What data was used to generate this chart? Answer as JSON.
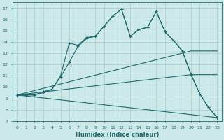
{
  "xlabel": "Humidex (Indice chaleur)",
  "background_color": "#cde8e8",
  "grid_color": "#a8cccc",
  "line_color": "#1a6b6b",
  "xlim": [
    -0.5,
    23.5
  ],
  "ylim": [
    7,
    17.5
  ],
  "yticks": [
    7,
    8,
    9,
    10,
    11,
    12,
    13,
    14,
    15,
    16,
    17
  ],
  "xticks": [
    0,
    1,
    2,
    3,
    4,
    5,
    6,
    7,
    8,
    9,
    10,
    11,
    12,
    13,
    14,
    15,
    16,
    17,
    18,
    19,
    20,
    21,
    22,
    23
  ],
  "line1_x": [
    0,
    1,
    2,
    3,
    4,
    5,
    6,
    7,
    8,
    9,
    10,
    11,
    12,
    13,
    14,
    15,
    16,
    17,
    18,
    19,
    20,
    21,
    22,
    23
  ],
  "line1_y": [
    9.3,
    9.3,
    9.3,
    9.5,
    9.8,
    11.0,
    13.9,
    13.7,
    14.4,
    14.5,
    15.4,
    16.3,
    16.9,
    14.5,
    15.1,
    15.3,
    16.7,
    14.9,
    14.1,
    13.2,
    11.1,
    9.4,
    8.2,
    7.3
  ],
  "line2_x": [
    0,
    1,
    2,
    3,
    4,
    5,
    6,
    7,
    8,
    9,
    10,
    11,
    12,
    13,
    14,
    15,
    16,
    17,
    18,
    19,
    20,
    21,
    22,
    23
  ],
  "line2_y": [
    9.3,
    9.3,
    9.3,
    9.6,
    9.8,
    10.9,
    12.2,
    13.6,
    14.3,
    14.5,
    15.4,
    16.3,
    16.9,
    14.5,
    15.1,
    15.3,
    16.7,
    14.9,
    14.1,
    13.2,
    11.1,
    9.4,
    8.2,
    7.3
  ],
  "line3_x": [
    0,
    20,
    23
  ],
  "line3_y": [
    9.3,
    13.2,
    13.2
  ],
  "line4_x": [
    0,
    20,
    23
  ],
  "line4_y": [
    9.3,
    11.1,
    11.1
  ],
  "line5_x": [
    0,
    23
  ],
  "line5_y": [
    9.3,
    7.3
  ]
}
